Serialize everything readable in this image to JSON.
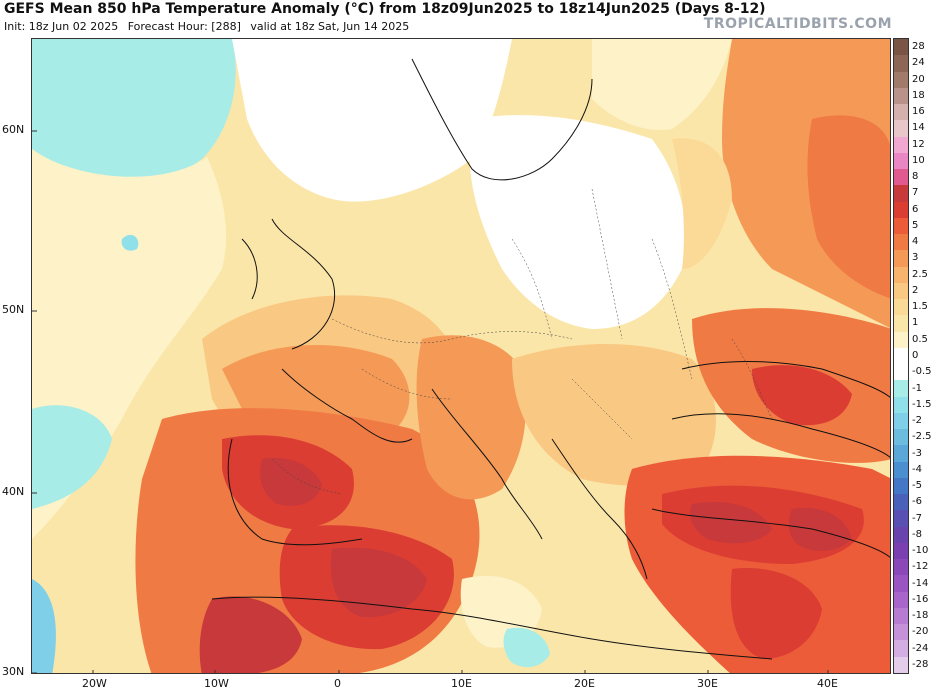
{
  "header": {
    "title": "GEFS Mean 850 hPa Temperature Anomaly (°C) from 18z09Jun2025 to 18z14Jun2025 (Days 8-12)",
    "init": "Init: 18z Jun 02 2025",
    "forecast_hour": "Forecast Hour: [288]",
    "valid": "valid at 18z Sat, Jun 14 2025",
    "brand": "TROPICALTIDBITS.COM"
  },
  "axes": {
    "latitudes": [
      "60N",
      "50N",
      "40N",
      "30N"
    ],
    "longitudes": [
      "20W",
      "10W",
      "0",
      "10E",
      "20E",
      "30E",
      "40E"
    ]
  },
  "colorbar": {
    "labels": [
      "28",
      "24",
      "20",
      "18",
      "16",
      "14",
      "12",
      "10",
      "8",
      "7",
      "6",
      "5",
      "4",
      "3",
      "2.5",
      "2",
      "1.5",
      "1",
      "0.5",
      "0",
      "-0.5",
      "-1",
      "-1.5",
      "-2",
      "-2.5",
      "-3",
      "-4",
      "-5",
      "-6",
      "-7",
      "-8",
      "-10",
      "-12",
      "-14",
      "-16",
      "-18",
      "-20",
      "-24",
      "-28"
    ],
    "colors": [
      "#7a5545",
      "#8e6656",
      "#a27a6a",
      "#b99389",
      "#d4b1ac",
      "#e8c6c9",
      "#f0a8d0",
      "#ea86c4",
      "#e05a8f",
      "#c8393b",
      "#db3d33",
      "#ec5c38",
      "#f07a44",
      "#f59a56",
      "#f8b46c",
      "#f9c882",
      "#fbd997",
      "#fbe6aa",
      "#fdf2c8",
      "#ffffff",
      "#ffffff",
      "#a7ece7",
      "#90e0ea",
      "#7fcfe8",
      "#6cbce0",
      "#5aa7d8",
      "#4b8fd0",
      "#4478c6",
      "#4a61ba",
      "#5a4fb2",
      "#6a44ae",
      "#7a3fb0",
      "#8b48b9",
      "#9a55c2",
      "#a866cb",
      "#b77bd2",
      "#c592d9",
      "#d4aee2",
      "#e3cdea"
    ]
  }
}
